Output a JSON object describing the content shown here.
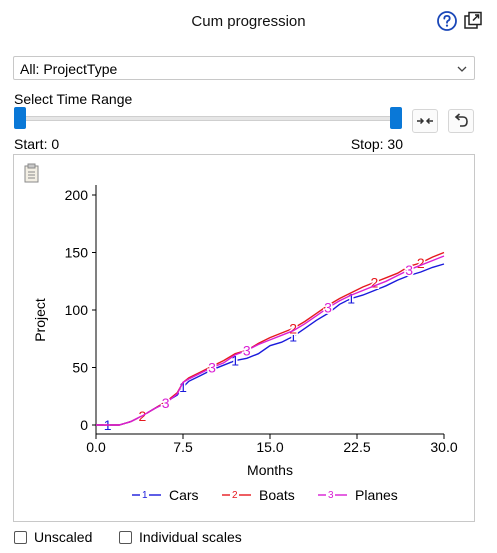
{
  "header": {
    "title": "Cum progression",
    "help_icon": "help-circle-icon",
    "popout_icon": "pop-out-icon"
  },
  "filter": {
    "selected": "All: ProjectType"
  },
  "time_range": {
    "label": "Select Time Range",
    "start_label": "Start: 0",
    "stop_label": "Stop: 30",
    "start": 0,
    "stop": 30,
    "min": 0,
    "max": 30
  },
  "toolbar": {
    "fit_icon": "compress-arrows-icon",
    "undo_icon": "undo-icon",
    "clipboard_icon": "clipboard-icon"
  },
  "colors": {
    "Cars": "#1a1adc",
    "Boats": "#e6191e",
    "Planes": "#d91ed4",
    "accent": "#0a78d7"
  },
  "chart_data": {
    "type": "line",
    "xlabel": "Months",
    "ylabel": "Project",
    "xlim": [
      0,
      30
    ],
    "ylim": [
      0,
      200
    ],
    "xticks": [
      "0.0",
      "7.5",
      "15.0",
      "22.5",
      "30.0"
    ],
    "yticks": [
      "0",
      "50",
      "100",
      "150",
      "200"
    ],
    "x": [
      0,
      1,
      2,
      3,
      4,
      5,
      6,
      7,
      7.5,
      8,
      9,
      10,
      11,
      12,
      13,
      14,
      15,
      16,
      17,
      18,
      19,
      20,
      21,
      22,
      23,
      24,
      25,
      26,
      27,
      28,
      29,
      30
    ],
    "series": [
      {
        "name": "Cars",
        "marker": "1",
        "color": "#1a1adc",
        "values": [
          0,
          0,
          0,
          3,
          8,
          14,
          20,
          26,
          33,
          38,
          43,
          48,
          52,
          56,
          58,
          62,
          69,
          72,
          77,
          84,
          91,
          97,
          105,
          110,
          113,
          117,
          121,
          126,
          130,
          133,
          137,
          140
        ]
      },
      {
        "name": "Boats",
        "marker": "2",
        "color": "#e6191e",
        "values": [
          0,
          0,
          0,
          3,
          8,
          14,
          20,
          28,
          37,
          41,
          46,
          51,
          56,
          62,
          65,
          71,
          76,
          80,
          84,
          90,
          97,
          104,
          110,
          115,
          120,
          124,
          128,
          132,
          138,
          141,
          146,
          150
        ]
      },
      {
        "name": "Planes",
        "marker": "3",
        "color": "#d91ed4",
        "values": [
          0,
          0,
          0,
          3,
          8,
          14,
          19,
          27,
          37,
          40,
          45,
          50,
          54,
          61,
          65,
          70,
          74,
          78,
          82,
          88,
          95,
          102,
          108,
          113,
          117,
          121,
          125,
          130,
          135,
          139,
          143,
          147
        ]
      }
    ],
    "legend": {
      "position": "bottom"
    },
    "grid": false
  },
  "options": {
    "unscaled_label": "Unscaled",
    "individual_scales_label": "Individual scales"
  }
}
